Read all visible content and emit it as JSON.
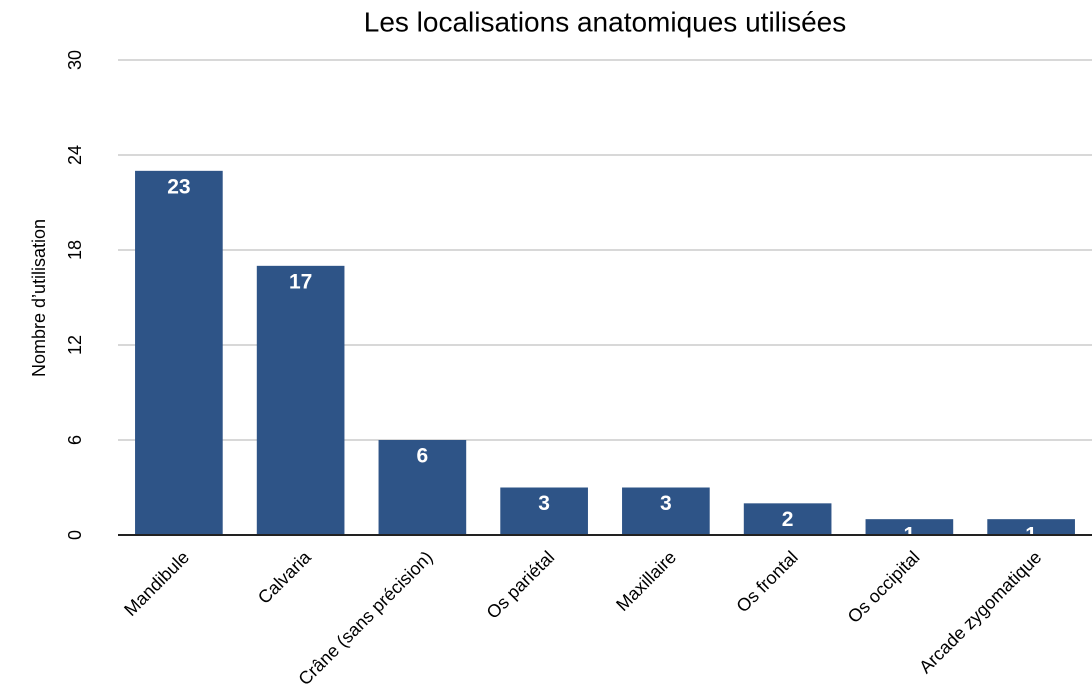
{
  "chart_data": {
    "type": "bar",
    "title": "Les localisations anatomiques utilisées",
    "ylabel": "Nombre d’utilisation",
    "categories": [
      "Mandibule",
      "Calvaria",
      "Crâne (sans précision)",
      "Os pariétal",
      "Maxillaire",
      "Os frontal",
      "Os occipital",
      "Arcade zygomatique"
    ],
    "values": [
      23,
      17,
      6,
      3,
      3,
      2,
      1,
      1
    ],
    "color": "#2e5487",
    "ylim": [
      0,
      30
    ],
    "yticks": [
      0,
      6,
      12,
      18,
      24,
      30
    ],
    "grid": true
  }
}
